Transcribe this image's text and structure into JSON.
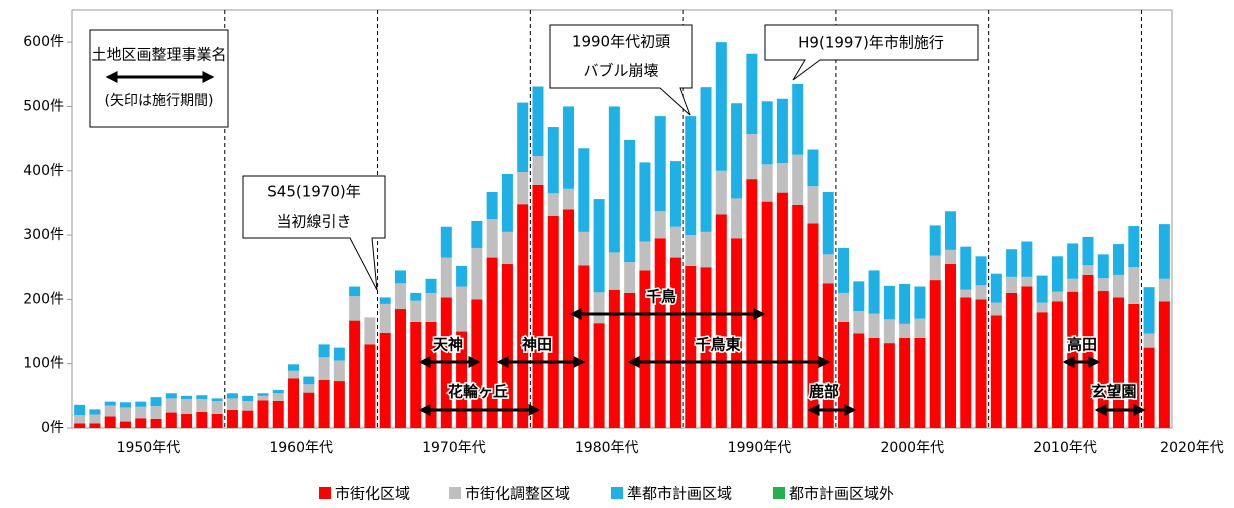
{
  "chart_data": {
    "type": "bar",
    "stacked": true,
    "categories": [
      null,
      null,
      null,
      null,
      null,
      null,
      null,
      null,
      null,
      null,
      null,
      null,
      null,
      null,
      null,
      null,
      null,
      null,
      null,
      null,
      null,
      null,
      null,
      null,
      null,
      null,
      null,
      null,
      null,
      null,
      null,
      null,
      null,
      null,
      null,
      null,
      null,
      null,
      null,
      null,
      null,
      null,
      null,
      null,
      null,
      null,
      null,
      null,
      null,
      null,
      null,
      null,
      null,
      null,
      null,
      null,
      null,
      null,
      null,
      null,
      null,
      null,
      null,
      null,
      null,
      null,
      null,
      null,
      null,
      null,
      null,
      null
    ],
    "x_labels": [
      "1950年代",
      "1960年代",
      "1970年代",
      "1980年代",
      "1990年代",
      "2000年代",
      "2010年代",
      "2020年代"
    ],
    "series": [
      {
        "name": "市街化区域",
        "color": "#ff0000",
        "values": [
          7,
          7,
          18,
          10,
          15,
          14,
          24,
          22,
          25,
          22,
          28,
          27,
          43,
          42,
          77,
          55,
          75,
          73,
          167,
          130,
          148,
          185,
          165,
          165,
          203,
          150,
          200,
          265,
          255,
          348,
          378,
          330,
          340,
          253,
          163,
          215,
          210,
          245,
          295,
          265,
          252,
          250,
          332,
          295,
          387,
          352,
          366,
          347,
          318,
          225,
          165,
          147,
          140,
          132,
          140,
          140,
          230,
          255,
          203,
          200,
          175,
          210,
          220,
          180,
          197,
          212,
          238,
          213,
          203,
          193,
          125,
          197
        ]
      },
      {
        "name": "市街化調整区域",
        "color": "#bfbfbf",
        "values": [
          13,
          14,
          17,
          22,
          18,
          20,
          22,
          23,
          20,
          20,
          18,
          15,
          7,
          12,
          12,
          13,
          35,
          32,
          38,
          42,
          45,
          40,
          33,
          45,
          62,
          70,
          80,
          60,
          50,
          50,
          45,
          35,
          32,
          52,
          48,
          58,
          48,
          45,
          42,
          48,
          48,
          55,
          68,
          62,
          70,
          58,
          46,
          78,
          58,
          45,
          45,
          35,
          38,
          37,
          22,
          30,
          38,
          22,
          12,
          22,
          20,
          25,
          15,
          15,
          15,
          20,
          15,
          20,
          35,
          57,
          22,
          35
        ]
      },
      {
        "name": "準都市計画区域",
        "color": "#1fb0e6",
        "values": [
          16,
          8,
          6,
          8,
          8,
          14,
          8,
          5,
          6,
          4,
          8,
          8,
          4,
          5,
          10,
          12,
          20,
          20,
          15,
          0,
          10,
          20,
          12,
          22,
          48,
          32,
          42,
          42,
          90,
          108,
          108,
          103,
          128,
          130,
          145,
          227,
          190,
          123,
          148,
          102,
          185,
          225,
          200,
          148,
          125,
          98,
          100,
          110,
          57,
          97,
          70,
          46,
          67,
          52,
          62,
          50,
          47,
          60,
          67,
          45,
          45,
          43,
          55,
          42,
          55,
          55,
          44,
          37,
          48,
          64,
          72,
          85
        ]
      },
      {
        "name": "都市計画区域外",
        "color": "#22b14c",
        "values": [
          0,
          0,
          0,
          0,
          0,
          0,
          0,
          0,
          0,
          0,
          0,
          0,
          0,
          0,
          0,
          0,
          0,
          0,
          0,
          0,
          0,
          0,
          0,
          0,
          0,
          0,
          0,
          0,
          0,
          0,
          0,
          0,
          0,
          0,
          0,
          0,
          0,
          0,
          0,
          0,
          0,
          0,
          0,
          0,
          0,
          0,
          0,
          0,
          0,
          0,
          0,
          0,
          0,
          0,
          0,
          0,
          0,
          0,
          0,
          0,
          0,
          0,
          0,
          0,
          0,
          0,
          0,
          0,
          0,
          0,
          0,
          0
        ]
      }
    ],
    "ylim": [
      0,
      650
    ],
    "yticks": [
      {
        "value": 0,
        "label": "0件"
      },
      {
        "value": 100,
        "label": "100件"
      },
      {
        "value": 200,
        "label": "200件"
      },
      {
        "value": 300,
        "label": "300件"
      },
      {
        "value": 400,
        "label": "400件"
      },
      {
        "value": 500,
        "label": "500件"
      },
      {
        "value": 600,
        "label": "600件"
      }
    ],
    "legend": "bottom",
    "annotations": {
      "legend_box": [
        "土地区画整理事業名",
        "(矢印は施行期間)"
      ],
      "s45": [
        "S45(1970)年",
        "当初線引き"
      ],
      "bubble": [
        "1990年代初頭",
        "バブル崩壊"
      ],
      "h9": "H9(1997)年市制施行",
      "projects": [
        "天神",
        "神田",
        "花輪ヶ丘",
        "千鳥",
        "千鳥東",
        "鹿部",
        "高田",
        "玄望園"
      ]
    }
  }
}
